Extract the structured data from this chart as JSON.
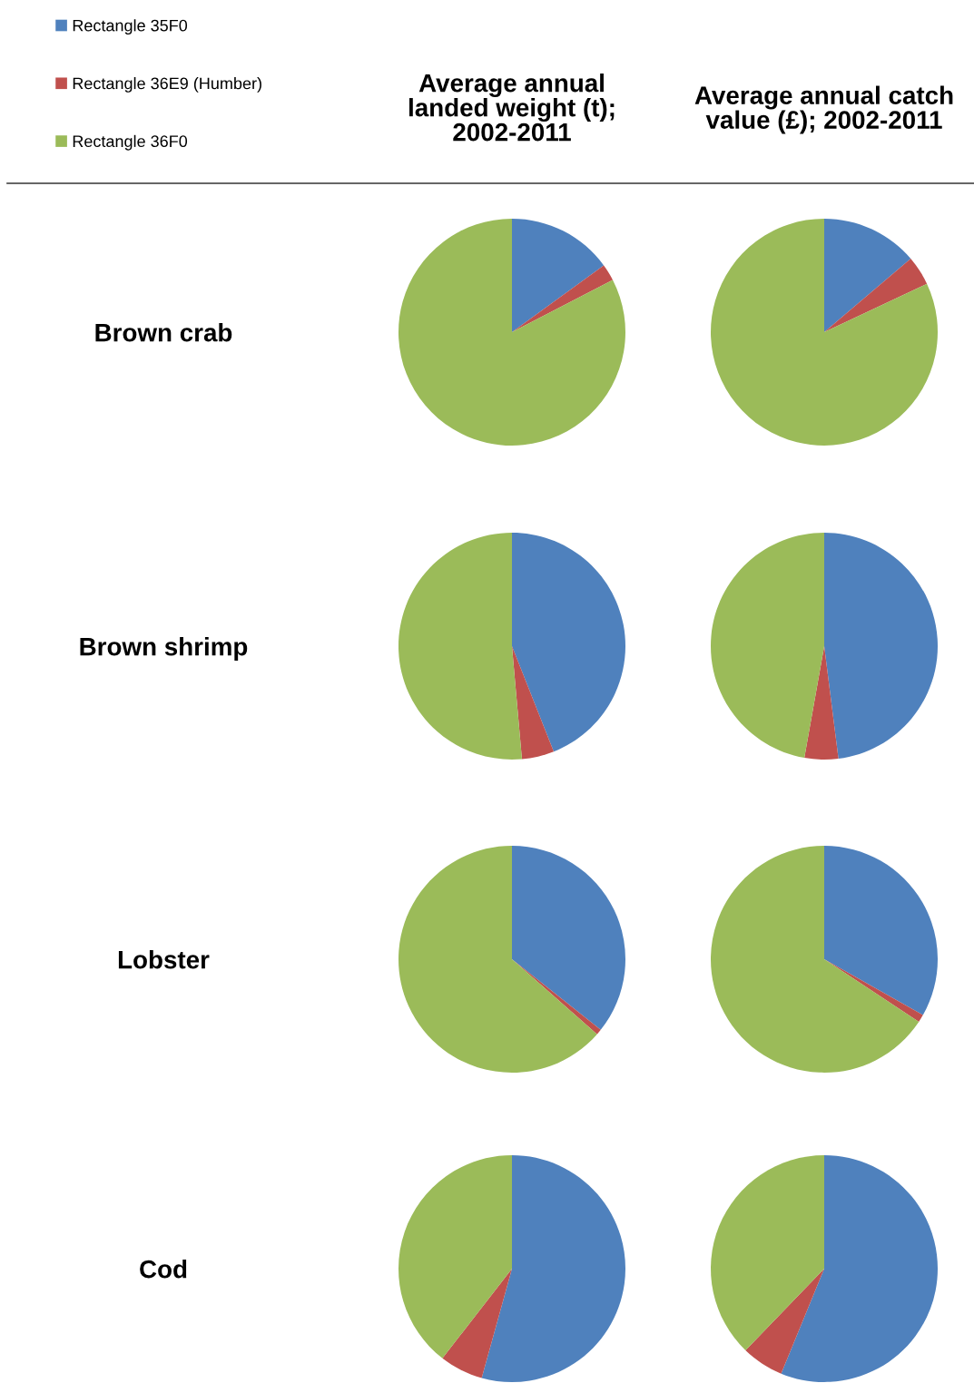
{
  "chart_data": [
    {
      "type": "pie",
      "title": "Average annual\nlanded weight (t);\n2002-2011",
      "ylabel": "Brown crab",
      "legend": "top left",
      "categories": [
        "Rectangle 35F0",
        "Rectangle 36E9 (Humber)",
        "Rectangle 36F0"
      ],
      "values": [
        15.0,
        2.4,
        82.6
      ],
      "colors": [
        "#4f81bd",
        "#c0504d",
        "#9bbb59"
      ]
    },
    {
      "type": "pie",
      "title": "Average annual catch\nvalue (£); 2002-2011",
      "values": [
        13.8,
        4.2,
        82.0
      ],
      "colors": [
        "#4f81bd",
        "#c0504d",
        "#9bbb59"
      ]
    },
    {
      "type": "pie",
      "ylabel": "Brown shrimp",
      "values": [
        44.0,
        4.6,
        51.4
      ],
      "colors": [
        "#4f81bd",
        "#c0504d",
        "#9bbb59"
      ]
    },
    {
      "type": "pie",
      "values": [
        48.0,
        4.8,
        47.2
      ],
      "colors": [
        "#4f81bd",
        "#c0504d",
        "#9bbb59"
      ]
    },
    {
      "type": "pie",
      "ylabel": "Lobster",
      "values": [
        35.7,
        0.8,
        63.5
      ],
      "colors": [
        "#4f81bd",
        "#c0504d",
        "#9bbb59"
      ]
    },
    {
      "type": "pie",
      "values": [
        33.2,
        1.1,
        65.7
      ],
      "colors": [
        "#4f81bd",
        "#c0504d",
        "#9bbb59"
      ]
    },
    {
      "type": "pie",
      "ylabel": "Cod",
      "values": [
        54.3,
        6.2,
        39.5
      ],
      "colors": [
        "#4f81bd",
        "#c0504d",
        "#9bbb59"
      ]
    },
    {
      "type": "pie",
      "values": [
        56.2,
        6.0,
        37.8
      ],
      "colors": [
        "#4f81bd",
        "#c0504d",
        "#9bbb59"
      ]
    }
  ]
}
